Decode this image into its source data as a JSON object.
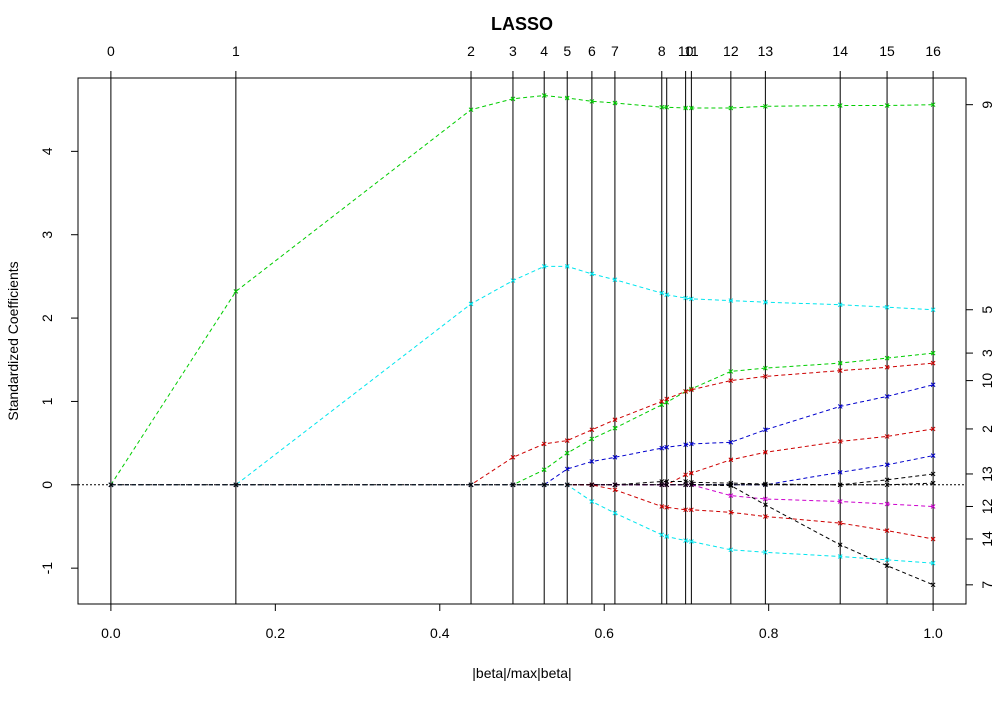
{
  "chart_data": {
    "type": "line",
    "title": "LASSO",
    "xlabel": "|beta|/max|beta|",
    "ylabel": "Standardized Coefficients",
    "xlim": [
      -0.04,
      1.04
    ],
    "ylim": [
      -1.43,
      4.88
    ],
    "x_ticks": [
      "0.0",
      "0.2",
      "0.4",
      "0.6",
      "0.8",
      "1.0"
    ],
    "x_tick_values": [
      0,
      0.2,
      0.4,
      0.6,
      0.8,
      1.0
    ],
    "y_ticks": [
      "-1",
      "0",
      "1",
      "2",
      "3",
      "4"
    ],
    "y_tick_values": [
      -1,
      0,
      1,
      2,
      3,
      4
    ],
    "steps": [
      "0",
      "1",
      "2",
      "3",
      "4",
      "5",
      "6",
      "7",
      "8",
      "10",
      "11",
      "12",
      "13",
      "14",
      "15",
      "16"
    ],
    "step_x": [
      0,
      0.152,
      0.438,
      0.489,
      0.527,
      0.555,
      0.585,
      0.613,
      0.67,
      0.676,
      0.699,
      0.706,
      0.754,
      0.796,
      0.887,
      0.944,
      1.0
    ],
    "top_labels": [
      {
        "label": "0",
        "x": 0
      },
      {
        "label": "1",
        "x": 0.152
      },
      {
        "label": "2",
        "x": 0.438
      },
      {
        "label": "3",
        "x": 0.489
      },
      {
        "label": "4",
        "x": 0.527
      },
      {
        "label": "5",
        "x": 0.555
      },
      {
        "label": "6",
        "x": 0.585
      },
      {
        "label": "7",
        "x": 0.613
      },
      {
        "label": "8",
        "x": 0.67
      },
      {
        "label": "10",
        "x": 0.699
      },
      {
        "label": "11",
        "x": 0.706
      },
      {
        "label": "12",
        "x": 0.754
      },
      {
        "label": "13",
        "x": 0.796
      },
      {
        "label": "14",
        "x": 0.887
      },
      {
        "label": "15",
        "x": 0.944
      },
      {
        "label": "16",
        "x": 1.0
      }
    ],
    "right_labels": [
      {
        "label": "9",
        "y": 4.56
      },
      {
        "label": "5",
        "y": 2.1
      },
      {
        "label": "3",
        "y": 1.58
      },
      {
        "label": "10",
        "y": 1.25
      },
      {
        "label": "2",
        "y": 0.67
      },
      {
        "label": "13",
        "y": 0.13
      },
      {
        "label": "12",
        "y": -0.26
      },
      {
        "label": "14",
        "y": -0.65
      },
      {
        "label": "7",
        "y": -1.2
      }
    ],
    "series": [
      {
        "color": "#00cd00",
        "values": [
          0,
          2.32,
          4.5,
          4.63,
          4.67,
          4.64,
          4.6,
          4.58,
          4.53,
          4.53,
          4.52,
          4.52,
          4.52,
          4.54,
          4.55,
          4.55,
          4.56
        ]
      },
      {
        "color": "#00e5ee",
        "values": [
          0,
          0,
          2.17,
          2.45,
          2.62,
          2.62,
          2.53,
          2.46,
          2.3,
          2.28,
          2.24,
          2.23,
          2.21,
          2.19,
          2.16,
          2.13,
          2.1
        ]
      },
      {
        "color": "#00cd00",
        "values": [
          0,
          0,
          0,
          0,
          0.18,
          0.38,
          0.55,
          0.68,
          0.96,
          0.99,
          1.12,
          1.15,
          1.36,
          1.4,
          1.46,
          1.52,
          1.58
        ]
      },
      {
        "color": "#cd0000",
        "values": [
          0,
          0,
          0,
          0.33,
          0.49,
          0.53,
          0.66,
          0.78,
          1.0,
          1.03,
          1.12,
          1.14,
          1.25,
          1.3,
          1.37,
          1.41,
          1.46
        ]
      },
      {
        "color": "#0000cd",
        "values": [
          0,
          0,
          0,
          0,
          0,
          0.19,
          0.28,
          0.33,
          0.44,
          0.45,
          0.48,
          0.49,
          0.51,
          0.66,
          0.94,
          1.06,
          1.2
        ]
      },
      {
        "color": "#cd0000",
        "values": [
          0,
          0,
          0,
          0,
          0,
          0,
          0,
          0,
          0,
          0,
          0.12,
          0.14,
          0.3,
          0.39,
          0.52,
          0.58,
          0.67
        ]
      },
      {
        "color": "#0000cd",
        "values": [
          0,
          0,
          0,
          0,
          0,
          0,
          0,
          0,
          0,
          0,
          0,
          0,
          0,
          0,
          0.15,
          0.24,
          0.35
        ]
      },
      {
        "color": "#000000",
        "values": [
          0,
          0,
          0,
          0,
          0,
          0,
          0,
          0,
          0.04,
          0.04,
          0.04,
          0.03,
          0.02,
          0.01,
          0.0,
          0.06,
          0.13
        ]
      },
      {
        "color": "#000000",
        "values": [
          0,
          0,
          0,
          0,
          0,
          0,
          0,
          0,
          0,
          0,
          0,
          0,
          0,
          0,
          0,
          0,
          0.02
        ]
      },
      {
        "color": "#cd00cd",
        "values": [
          0,
          0,
          0,
          0,
          0,
          0,
          0,
          0,
          0,
          0,
          0,
          0,
          -0.13,
          -0.17,
          -0.2,
          -0.23,
          -0.26
        ]
      },
      {
        "color": "#cd0000",
        "values": [
          0,
          0,
          0,
          0,
          0,
          0,
          0,
          -0.06,
          -0.26,
          -0.27,
          -0.3,
          -0.3,
          -0.33,
          -0.38,
          -0.46,
          -0.55,
          -0.65
        ]
      },
      {
        "color": "#00e5ee",
        "values": [
          0,
          0,
          0,
          0,
          0,
          0,
          -0.2,
          -0.34,
          -0.6,
          -0.62,
          -0.67,
          -0.68,
          -0.78,
          -0.81,
          -0.86,
          -0.9,
          -0.94
        ]
      },
      {
        "color": "#000000",
        "values": [
          0,
          0,
          0,
          0,
          0,
          0,
          0,
          0,
          0,
          0,
          0,
          0,
          -0.01,
          -0.24,
          -0.72,
          -0.97,
          -1.2
        ]
      }
    ]
  }
}
